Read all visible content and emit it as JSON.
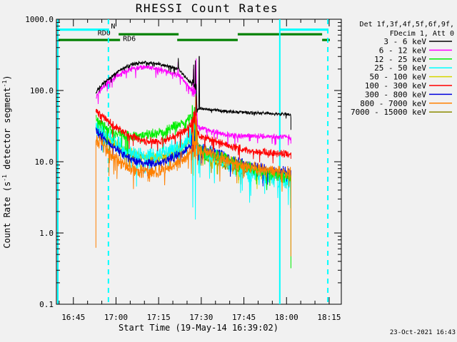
{
  "footer": {
    "timestamp": "23-Oct-2021 16:43"
  },
  "chart_data": {
    "type": "line",
    "title": "RHESSI Count Rates",
    "xlabel": "Start Time (19-May-14 16:39:02)",
    "ylabel": "Count Rate (s^-1 detector segment^-1)",
    "ylabel_parts": [
      {
        "text": "Count Rate (s"
      },
      {
        "sup": "-1"
      },
      {
        "text": " detector segment"
      },
      {
        "sup": "-1"
      },
      {
        "text": ")"
      }
    ],
    "x_axis": {
      "start_time": "16:39:02",
      "range_minutes": [
        0,
        100.25
      ],
      "major_ticks": [
        {
          "min": 5.97,
          "label": "16:45"
        },
        {
          "min": 20.97,
          "label": "17:00"
        },
        {
          "min": 35.97,
          "label": "17:15"
        },
        {
          "min": 50.97,
          "label": "17:30"
        },
        {
          "min": 65.97,
          "label": "17:45"
        },
        {
          "min": 80.97,
          "label": "18:00"
        },
        {
          "min": 95.97,
          "label": "18:15"
        }
      ],
      "minor_start": 0.97,
      "minor_step": 5
    },
    "y_axis": {
      "scale": "log",
      "range": [
        0.1,
        1000
      ],
      "major_ticks": [
        {
          "v": 1000,
          "label": "1000.0"
        },
        {
          "v": 100,
          "label": "100.0"
        },
        {
          "v": 10,
          "label": "10.0"
        },
        {
          "v": 1,
          "label": "1.0"
        },
        {
          "v": 0.1,
          "label": "0.1"
        }
      ]
    },
    "legend": {
      "header": [
        "Det 1f,3f,4f,5f,6f,9f,",
        "FDecim 1, Att 0"
      ]
    },
    "event_lines": {
      "color": "#00FFFF",
      "solid_min": [
        0.5,
        78.6
      ],
      "dashed_min": [
        18.3,
        95.5
      ]
    },
    "flag_bars": [
      {
        "label": "N",
        "color": "#00FFFF",
        "row": 0,
        "label_t": 19.2,
        "segments_min": [
          [
            0.5,
            18.3
          ],
          [
            78.6,
            95.7
          ]
        ]
      },
      {
        "label": "RD0",
        "color": "#008000",
        "row": 1,
        "label_t": 14.5,
        "segments_min": [
          [
            21.9,
            43.0
          ],
          [
            63.8,
            93.5
          ]
        ]
      },
      {
        "label": "RD6",
        "color": "#008000",
        "row": 2,
        "label_t": 23.4,
        "segments_min": [
          [
            0.5,
            22.4
          ],
          [
            42.5,
            63.8
          ],
          [
            93.5,
            96.2
          ]
        ]
      }
    ],
    "time_span_min": [
      13.9,
      82.5
    ],
    "burst_window_min": [
      47.6,
      49.6
    ],
    "series": [
      {
        "name": "3 - 6 keV",
        "color": "#000000",
        "z": 7,
        "noise": 0.03,
        "spikes": [
          {
            "t": 42.9,
            "v": 285
          },
          {
            "t": 48.3,
            "v": 230
          },
          {
            "t": 48.9,
            "v": 265
          },
          {
            "t": 50.25,
            "v": 300
          }
        ],
        "end_drop": 28,
        "anchors": [
          [
            13.9,
            92
          ],
          [
            15,
            108
          ],
          [
            17,
            132
          ],
          [
            20,
            163
          ],
          [
            23,
            200
          ],
          [
            26,
            228
          ],
          [
            29,
            244
          ],
          [
            32,
            247
          ],
          [
            35,
            240
          ],
          [
            38,
            228
          ],
          [
            40,
            215
          ],
          [
            43,
            200
          ],
          [
            45,
            160
          ],
          [
            46.5,
            138
          ],
          [
            48,
            124
          ],
          [
            49.2,
            116
          ],
          [
            49.45,
            57
          ],
          [
            50,
            56
          ],
          [
            53,
            54
          ],
          [
            57,
            52
          ],
          [
            62,
            50.5
          ],
          [
            67,
            49
          ],
          [
            72,
            48
          ],
          [
            77,
            47
          ],
          [
            82.5,
            46
          ]
        ]
      },
      {
        "name": "6 - 12 keV",
        "color": "#FF00FF",
        "z": 6,
        "noise": 0.05,
        "spikes": [
          {
            "t": 42.8,
            "v": 250
          },
          {
            "t": 48.2,
            "v": 200
          },
          {
            "t": 48.8,
            "v": 230
          },
          {
            "t": 49.2,
            "v": 280
          }
        ],
        "end_drop": 18,
        "anchors": [
          [
            13.9,
            82
          ],
          [
            15,
            96
          ],
          [
            17,
            118
          ],
          [
            20,
            146
          ],
          [
            23,
            175
          ],
          [
            26,
            198
          ],
          [
            29,
            210
          ],
          [
            32,
            212
          ],
          [
            35,
            205
          ],
          [
            38,
            192
          ],
          [
            40,
            180
          ],
          [
            43,
            166
          ],
          [
            45,
            135
          ],
          [
            46.5,
            112
          ],
          [
            48,
            92
          ],
          [
            49.2,
            96
          ],
          [
            49.7,
            31
          ],
          [
            51,
            29.5
          ],
          [
            54,
            27
          ],
          [
            58,
            25
          ],
          [
            62,
            23.5
          ],
          [
            66,
            23
          ],
          [
            70,
            22.8
          ],
          [
            74,
            22.5
          ],
          [
            78,
            22.2
          ],
          [
            82.5,
            22
          ]
        ]
      },
      {
        "name": "12 - 25 keV",
        "color": "#00EE00",
        "z": 4,
        "noise": 0.1,
        "spikes": [
          {
            "t": 49.05,
            "v": 118
          }
        ],
        "end_drop": 0.32,
        "anchors": [
          [
            13.9,
            40
          ],
          [
            15,
            36
          ],
          [
            17,
            31
          ],
          [
            20,
            26.5
          ],
          [
            23,
            24
          ],
          [
            26,
            23
          ],
          [
            29,
            23
          ],
          [
            32,
            23.5
          ],
          [
            35,
            24.5
          ],
          [
            38,
            26.5
          ],
          [
            41,
            30
          ],
          [
            44,
            34.5
          ],
          [
            46,
            38
          ],
          [
            47.5,
            44
          ],
          [
            48.8,
            52
          ],
          [
            49.3,
            50
          ],
          [
            49.7,
            15.5
          ],
          [
            51,
            14.5
          ],
          [
            54,
            13.2
          ],
          [
            58,
            11.5
          ],
          [
            62,
            10
          ],
          [
            66,
            8.8
          ],
          [
            70,
            7.8
          ],
          [
            74,
            7
          ],
          [
            78,
            6.4
          ],
          [
            82.5,
            5.9
          ]
        ]
      },
      {
        "name": "25 - 50 keV",
        "color": "#00FFFF",
        "z": 2,
        "noise": 0.16,
        "spikes": [
          {
            "t": 49.3,
            "v": 100
          }
        ],
        "end_drop": 4.3,
        "anchors": [
          [
            13.9,
            34
          ],
          [
            15,
            30.5
          ],
          [
            17,
            25.5
          ],
          [
            20,
            19.7
          ],
          [
            23,
            15.8
          ],
          [
            26,
            13.4
          ],
          [
            29,
            12.3
          ],
          [
            32,
            12
          ],
          [
            35,
            12.3
          ],
          [
            38,
            13.1
          ],
          [
            41,
            14.8
          ],
          [
            44,
            17.6
          ],
          [
            46,
            20.5
          ],
          [
            47.5,
            24
          ],
          [
            48.8,
            29
          ],
          [
            49.3,
            28
          ],
          [
            49.7,
            15.2
          ],
          [
            51,
            14.3
          ],
          [
            54,
            12.6
          ],
          [
            58,
            10.6
          ],
          [
            62,
            8.9
          ],
          [
            66,
            7.6
          ],
          [
            70,
            6.6
          ],
          [
            74,
            6
          ],
          [
            78,
            5.6
          ],
          [
            82.5,
            5.4
          ]
        ]
      },
      {
        "name": "50 - 100 keV",
        "color": "#D6D600",
        "z": 1,
        "noise": 0.085,
        "spikes": [
          {
            "t": 49.0,
            "v": 56
          }
        ],
        "anchors": [
          [
            13.9,
            32
          ],
          [
            15,
            29
          ],
          [
            17,
            24.5
          ],
          [
            20,
            19.2
          ],
          [
            23,
            15.8
          ],
          [
            26,
            13.6
          ],
          [
            29,
            12.4
          ],
          [
            32,
            12
          ],
          [
            35,
            12
          ],
          [
            38,
            12.6
          ],
          [
            41,
            14
          ],
          [
            44,
            16.5
          ],
          [
            46,
            19
          ],
          [
            47.5,
            22.5
          ],
          [
            48.8,
            27
          ],
          [
            49.3,
            26
          ],
          [
            49.7,
            13.2
          ],
          [
            51,
            12.6
          ],
          [
            54,
            11.4
          ],
          [
            58,
            10
          ],
          [
            62,
            8.8
          ],
          [
            66,
            8
          ],
          [
            70,
            7.3
          ],
          [
            74,
            6.9
          ],
          [
            78,
            6.6
          ],
          [
            82.5,
            6.5
          ]
        ]
      },
      {
        "name": "100 - 300 keV",
        "color": "#FF0000",
        "z": 5,
        "noise": 0.07,
        "spikes": [
          {
            "t": 49.1,
            "v": 85
          }
        ],
        "end_drop": 11,
        "anchors": [
          [
            13.9,
            52
          ],
          [
            15,
            47
          ],
          [
            17,
            40
          ],
          [
            20,
            32.5
          ],
          [
            23,
            27
          ],
          [
            26,
            23.5
          ],
          [
            29,
            21
          ],
          [
            32,
            19.5
          ],
          [
            35,
            19
          ],
          [
            38,
            19.8
          ],
          [
            41,
            22
          ],
          [
            44,
            26
          ],
          [
            46,
            29.5
          ],
          [
            47.5,
            34
          ],
          [
            48.8,
            41
          ],
          [
            49.3,
            40
          ],
          [
            49.7,
            24
          ],
          [
            51,
            23
          ],
          [
            54,
            21
          ],
          [
            58,
            18.2
          ],
          [
            62,
            16.2
          ],
          [
            66,
            14.8
          ],
          [
            70,
            13.9
          ],
          [
            74,
            13.4
          ],
          [
            78,
            13.1
          ],
          [
            82.5,
            13
          ]
        ]
      },
      {
        "name": "300 - 800 keV",
        "color": "#0000DD",
        "z": 3,
        "noise": 0.085,
        "spikes": [
          {
            "t": 48.95,
            "v": 58
          }
        ],
        "end_drop": 6,
        "anchors": [
          [
            13.9,
            27.5
          ],
          [
            15,
            24.8
          ],
          [
            17,
            20.8
          ],
          [
            20,
            16
          ],
          [
            23,
            13
          ],
          [
            26,
            11
          ],
          [
            29,
            10
          ],
          [
            32,
            9.5
          ],
          [
            35,
            9.5
          ],
          [
            38,
            10
          ],
          [
            41,
            11.3
          ],
          [
            44,
            13.4
          ],
          [
            46,
            15.6
          ],
          [
            47.5,
            18
          ],
          [
            48.8,
            21.5
          ],
          [
            49.3,
            21
          ],
          [
            49.7,
            16.6
          ],
          [
            51,
            15.8
          ],
          [
            54,
            14.4
          ],
          [
            58,
            12.5
          ],
          [
            62,
            10.8
          ],
          [
            66,
            9.6
          ],
          [
            70,
            8.6
          ],
          [
            74,
            8
          ],
          [
            78,
            7.6
          ],
          [
            82.5,
            7.4
          ]
        ]
      },
      {
        "name": "800 - 7000 keV",
        "color": "#FF8000",
        "z": 8,
        "noise": 0.12,
        "spikes": [
          {
            "t": 49.15,
            "v": 44
          }
        ],
        "start_drop": 0.62,
        "end_drop": 0.47,
        "anchors": [
          [
            13.9,
            21.5
          ],
          [
            15,
            19.2
          ],
          [
            17,
            15.8
          ],
          [
            20,
            11.9
          ],
          [
            23,
            9.6
          ],
          [
            26,
            8.2
          ],
          [
            29,
            7.5
          ],
          [
            32,
            7.2
          ],
          [
            35,
            7.3
          ],
          [
            38,
            7.8
          ],
          [
            41,
            8.9
          ],
          [
            44,
            10.6
          ],
          [
            46,
            12.4
          ],
          [
            47.5,
            14.6
          ],
          [
            48.8,
            17.5
          ],
          [
            49.3,
            17.2
          ],
          [
            49.7,
            14.7
          ],
          [
            51,
            14
          ],
          [
            54,
            12.8
          ],
          [
            58,
            11.1
          ],
          [
            62,
            9.8
          ],
          [
            66,
            8.8
          ],
          [
            70,
            8.1
          ],
          [
            74,
            7.6
          ],
          [
            78,
            7.2
          ],
          [
            82.5,
            7
          ]
        ]
      },
      {
        "name": "7000 - 15000 keV",
        "color": "#8B8B00",
        "z": 0,
        "noise": 0.075,
        "anchors": [
          [
            13.9,
            30
          ],
          [
            15,
            27
          ],
          [
            17,
            22.8
          ],
          [
            20,
            17.9
          ],
          [
            23,
            14.7
          ],
          [
            26,
            12.6
          ],
          [
            29,
            11.5
          ],
          [
            32,
            11.2
          ],
          [
            35,
            11.2
          ],
          [
            38,
            11.7
          ],
          [
            41,
            13
          ],
          [
            44,
            15.3
          ],
          [
            46,
            17.7
          ],
          [
            47.5,
            21
          ],
          [
            48.8,
            25
          ],
          [
            49.3,
            24
          ],
          [
            49.7,
            12.3
          ],
          [
            51,
            11.7
          ],
          [
            54,
            10.6
          ],
          [
            58,
            9.3
          ],
          [
            62,
            8.2
          ],
          [
            66,
            7.4
          ],
          [
            70,
            6.8
          ],
          [
            74,
            6.4
          ],
          [
            78,
            6.1
          ],
          [
            82.5,
            6
          ]
        ]
      }
    ]
  }
}
